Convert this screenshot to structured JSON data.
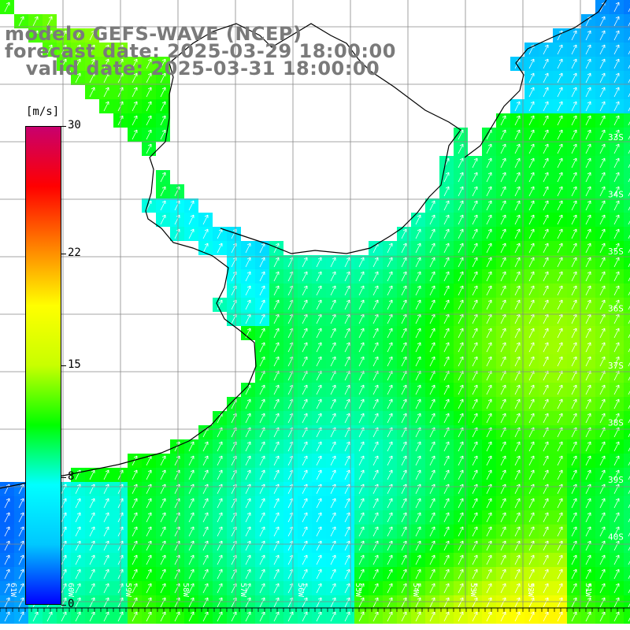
{
  "title": {
    "line1": "modelo GEFS-WAVE (NCEP)",
    "line2": "forecast date: 2025-03-29 18:00:00",
    "line3": "   valid date: 2025-03-31 18:00:00"
  },
  "colorbar": {
    "unit": "[m/s]",
    "ticks": [
      "30",
      "22",
      "15",
      "8",
      "0"
    ],
    "tick_values": [
      30,
      22,
      15,
      8,
      0
    ],
    "range": [
      0,
      30
    ],
    "stops": [
      "#0000ff",
      "#00c8ff",
      "#00ffff",
      "#00ff00",
      "#c8ff00",
      "#ffff00",
      "#ff8000",
      "#ff0000",
      "#c8006e"
    ]
  },
  "lat_labels": [
    "33S",
    "34S",
    "35S",
    "36S",
    "37S",
    "38S",
    "39S",
    "40S"
  ],
  "lon_labels": [
    "61W",
    "60W",
    "59W",
    "58W",
    "57W",
    "56W",
    "55W",
    "54W",
    "53W",
    "52W",
    "51W"
  ],
  "colors": {
    "land": "#ffffff",
    "grid": "#888888",
    "coast": "#000000",
    "arrow": "#ffffff"
  }
}
